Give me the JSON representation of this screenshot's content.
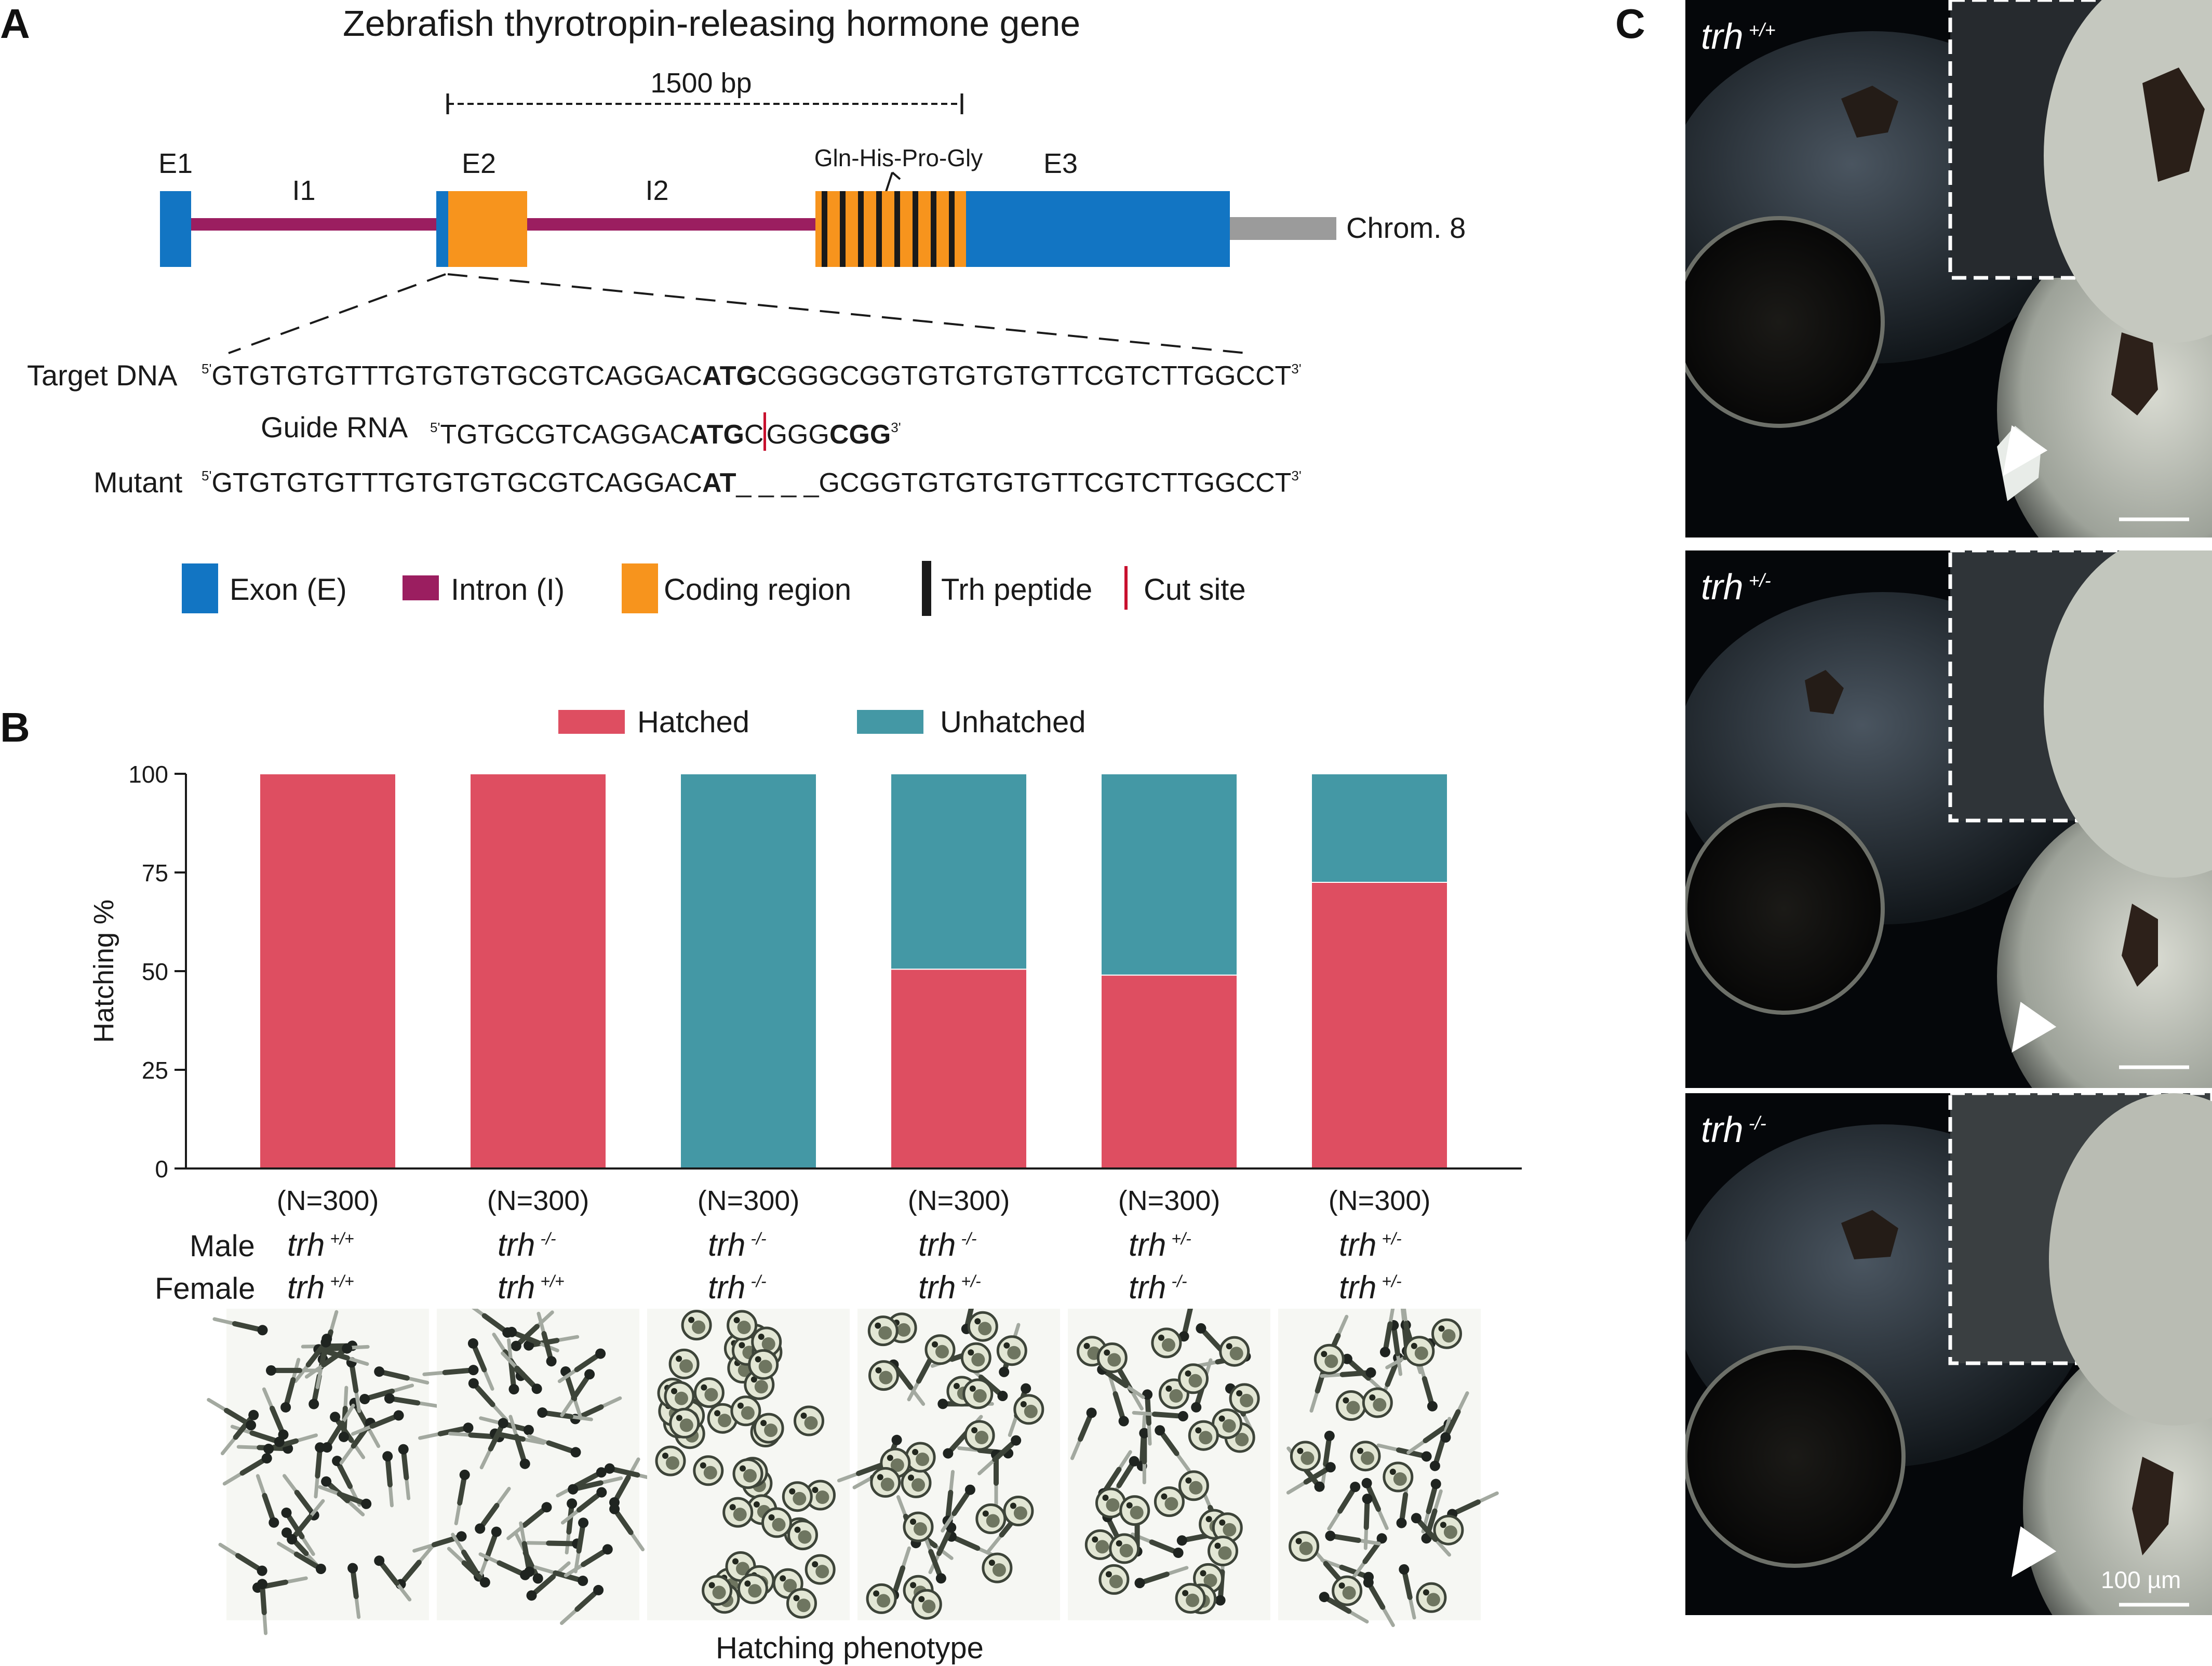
{
  "panel_labels": {
    "a": "A",
    "b": "B",
    "c": "C"
  },
  "gene": {
    "title": "Zebrafish thyrotropin-releasing hormone gene",
    "scale_bar_label": "1500 bp",
    "labels": {
      "e1": "E1",
      "i1": "I1",
      "e2": "E2",
      "i2": "I2",
      "e3": "E3",
      "peptide_repeat": "Gln-His-Pro-Gly",
      "chrom": "Chrom. 8"
    },
    "colors": {
      "exon": "#1275c3",
      "intron": "#9b1e60",
      "coding": "#f7941d",
      "peptide": "#1a1a1a",
      "cut": "#c8102e",
      "chrom": "#9b9b9b"
    }
  },
  "sequences": {
    "target": {
      "label": "Target DNA",
      "p5": "5'",
      "pre": "GTGTGTGTTTGTGTGTGCGTCAGGAC",
      "bold": "ATG",
      "post": "CGGGCGGTGTGTGTGTTCGTCTTGGCCT",
      "p3": "3'"
    },
    "guide": {
      "label": "Guide RNA",
      "p5": "5'",
      "pre": "TGTGCGTCAGGAC",
      "bold": "ATG",
      "mid": "C",
      "mid2": "GGG",
      "bold2": "CGG",
      "p3": "3'"
    },
    "mutant": {
      "label": "Mutant",
      "p5": "5'",
      "pre": "GTGTGTGTTTGTGTGTGCGTCAGGAC",
      "bold": "AT",
      "gap": "_ _ _ _",
      "post": "GCGGTGTGTGTGTTCGTCTTGGCCT",
      "p3": "3'"
    }
  },
  "legend_a": [
    {
      "label": "Exon (E)",
      "color": "#1275c3"
    },
    {
      "label": "Intron (I)",
      "color": "#9b1e60"
    },
    {
      "label": "Coding region",
      "color": "#f7941d"
    },
    {
      "label": "Trh peptide",
      "color": "#1a1a1a"
    },
    {
      "label": "Cut site",
      "color": "#c8102e"
    }
  ],
  "chart_data": {
    "type": "bar",
    "stacked": true,
    "ylabel": "Hatching %",
    "xlabel": "Hatching phenotype",
    "ylim": [
      0,
      100
    ],
    "yticks": [
      0,
      25,
      50,
      75,
      100
    ],
    "legend": {
      "placement": "top"
    },
    "categories": [
      "(N=300)",
      "(N=300)",
      "(N=300)",
      "(N=300)",
      "(N=300)",
      "(N=300)"
    ],
    "series": [
      {
        "name": "Hatched",
        "color": "#de4e61",
        "values": [
          100,
          100,
          0,
          50.5,
          49,
          72.5
        ]
      },
      {
        "name": "Unhatched",
        "color": "#4498a5",
        "values": [
          0,
          0,
          100,
          49.5,
          51,
          27.5
        ]
      }
    ],
    "row_labels": {
      "male": "Male",
      "female": "Female"
    },
    "genotypes": [
      {
        "gene": "trh",
        "male": "+/+",
        "female": "+/+"
      },
      {
        "gene": "trh",
        "male": "-/-",
        "female": "+/+"
      },
      {
        "gene": "trh",
        "male": "-/-",
        "female": "-/-"
      },
      {
        "gene": "trh",
        "male": "-/-",
        "female": "+/-"
      },
      {
        "gene": "trh",
        "male": "+/-",
        "female": "-/-"
      },
      {
        "gene": "trh",
        "male": "+/-",
        "female": "+/-"
      }
    ]
  },
  "panel_c": {
    "images": [
      {
        "gene": "trh",
        "genotype": "+/+"
      },
      {
        "gene": "trh",
        "genotype": "+/-"
      },
      {
        "gene": "trh",
        "genotype": "-/-"
      }
    ],
    "scale_label": "100 µm"
  }
}
